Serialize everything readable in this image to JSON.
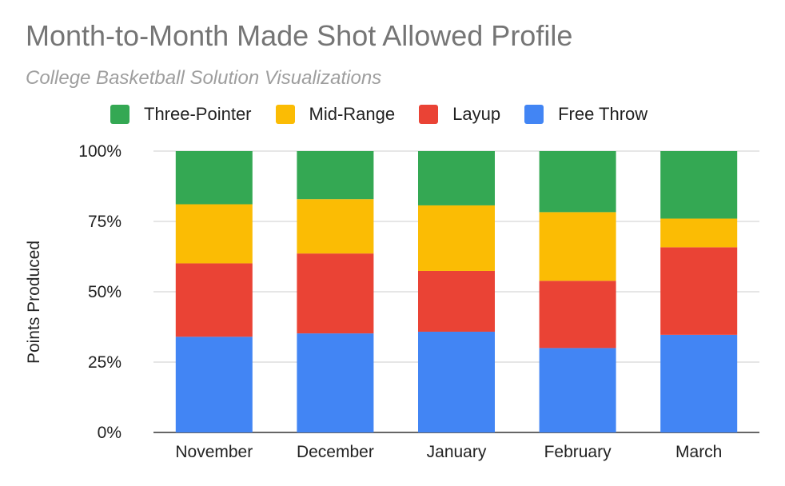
{
  "chart_data": {
    "type": "bar",
    "stacked": true,
    "title": "Month-to-Month Made Shot Allowed Profile",
    "subtitle": "College Basketball Solution Visualizations",
    "xlabel": "",
    "ylabel": "Points Produced",
    "ylim": [
      0,
      100
    ],
    "y_ticks": [
      "0%",
      "25%",
      "50%",
      "75%",
      "100%"
    ],
    "y_tick_values": [
      0,
      25,
      50,
      75,
      100
    ],
    "grid": true,
    "legend_position": "top",
    "categories": [
      "November",
      "December",
      "January",
      "February",
      "March"
    ],
    "series": [
      {
        "name": "Free Throw",
        "color": "#4285f4",
        "values": [
          34.0,
          35.2,
          35.8,
          30.0,
          34.7
        ]
      },
      {
        "name": "Layup",
        "color": "#ea4335",
        "values": [
          26.1,
          28.4,
          21.6,
          23.9,
          31.1
        ]
      },
      {
        "name": "Mid-Range",
        "color": "#fbbc04",
        "values": [
          21.0,
          19.3,
          23.3,
          24.4,
          10.2
        ]
      },
      {
        "name": "Three-Pointer",
        "color": "#34a853",
        "values": [
          18.9,
          17.1,
          19.3,
          21.7,
          24.0
        ]
      }
    ],
    "legend_order": [
      "Three-Pointer",
      "Mid-Range",
      "Layup",
      "Free Throw"
    ]
  }
}
